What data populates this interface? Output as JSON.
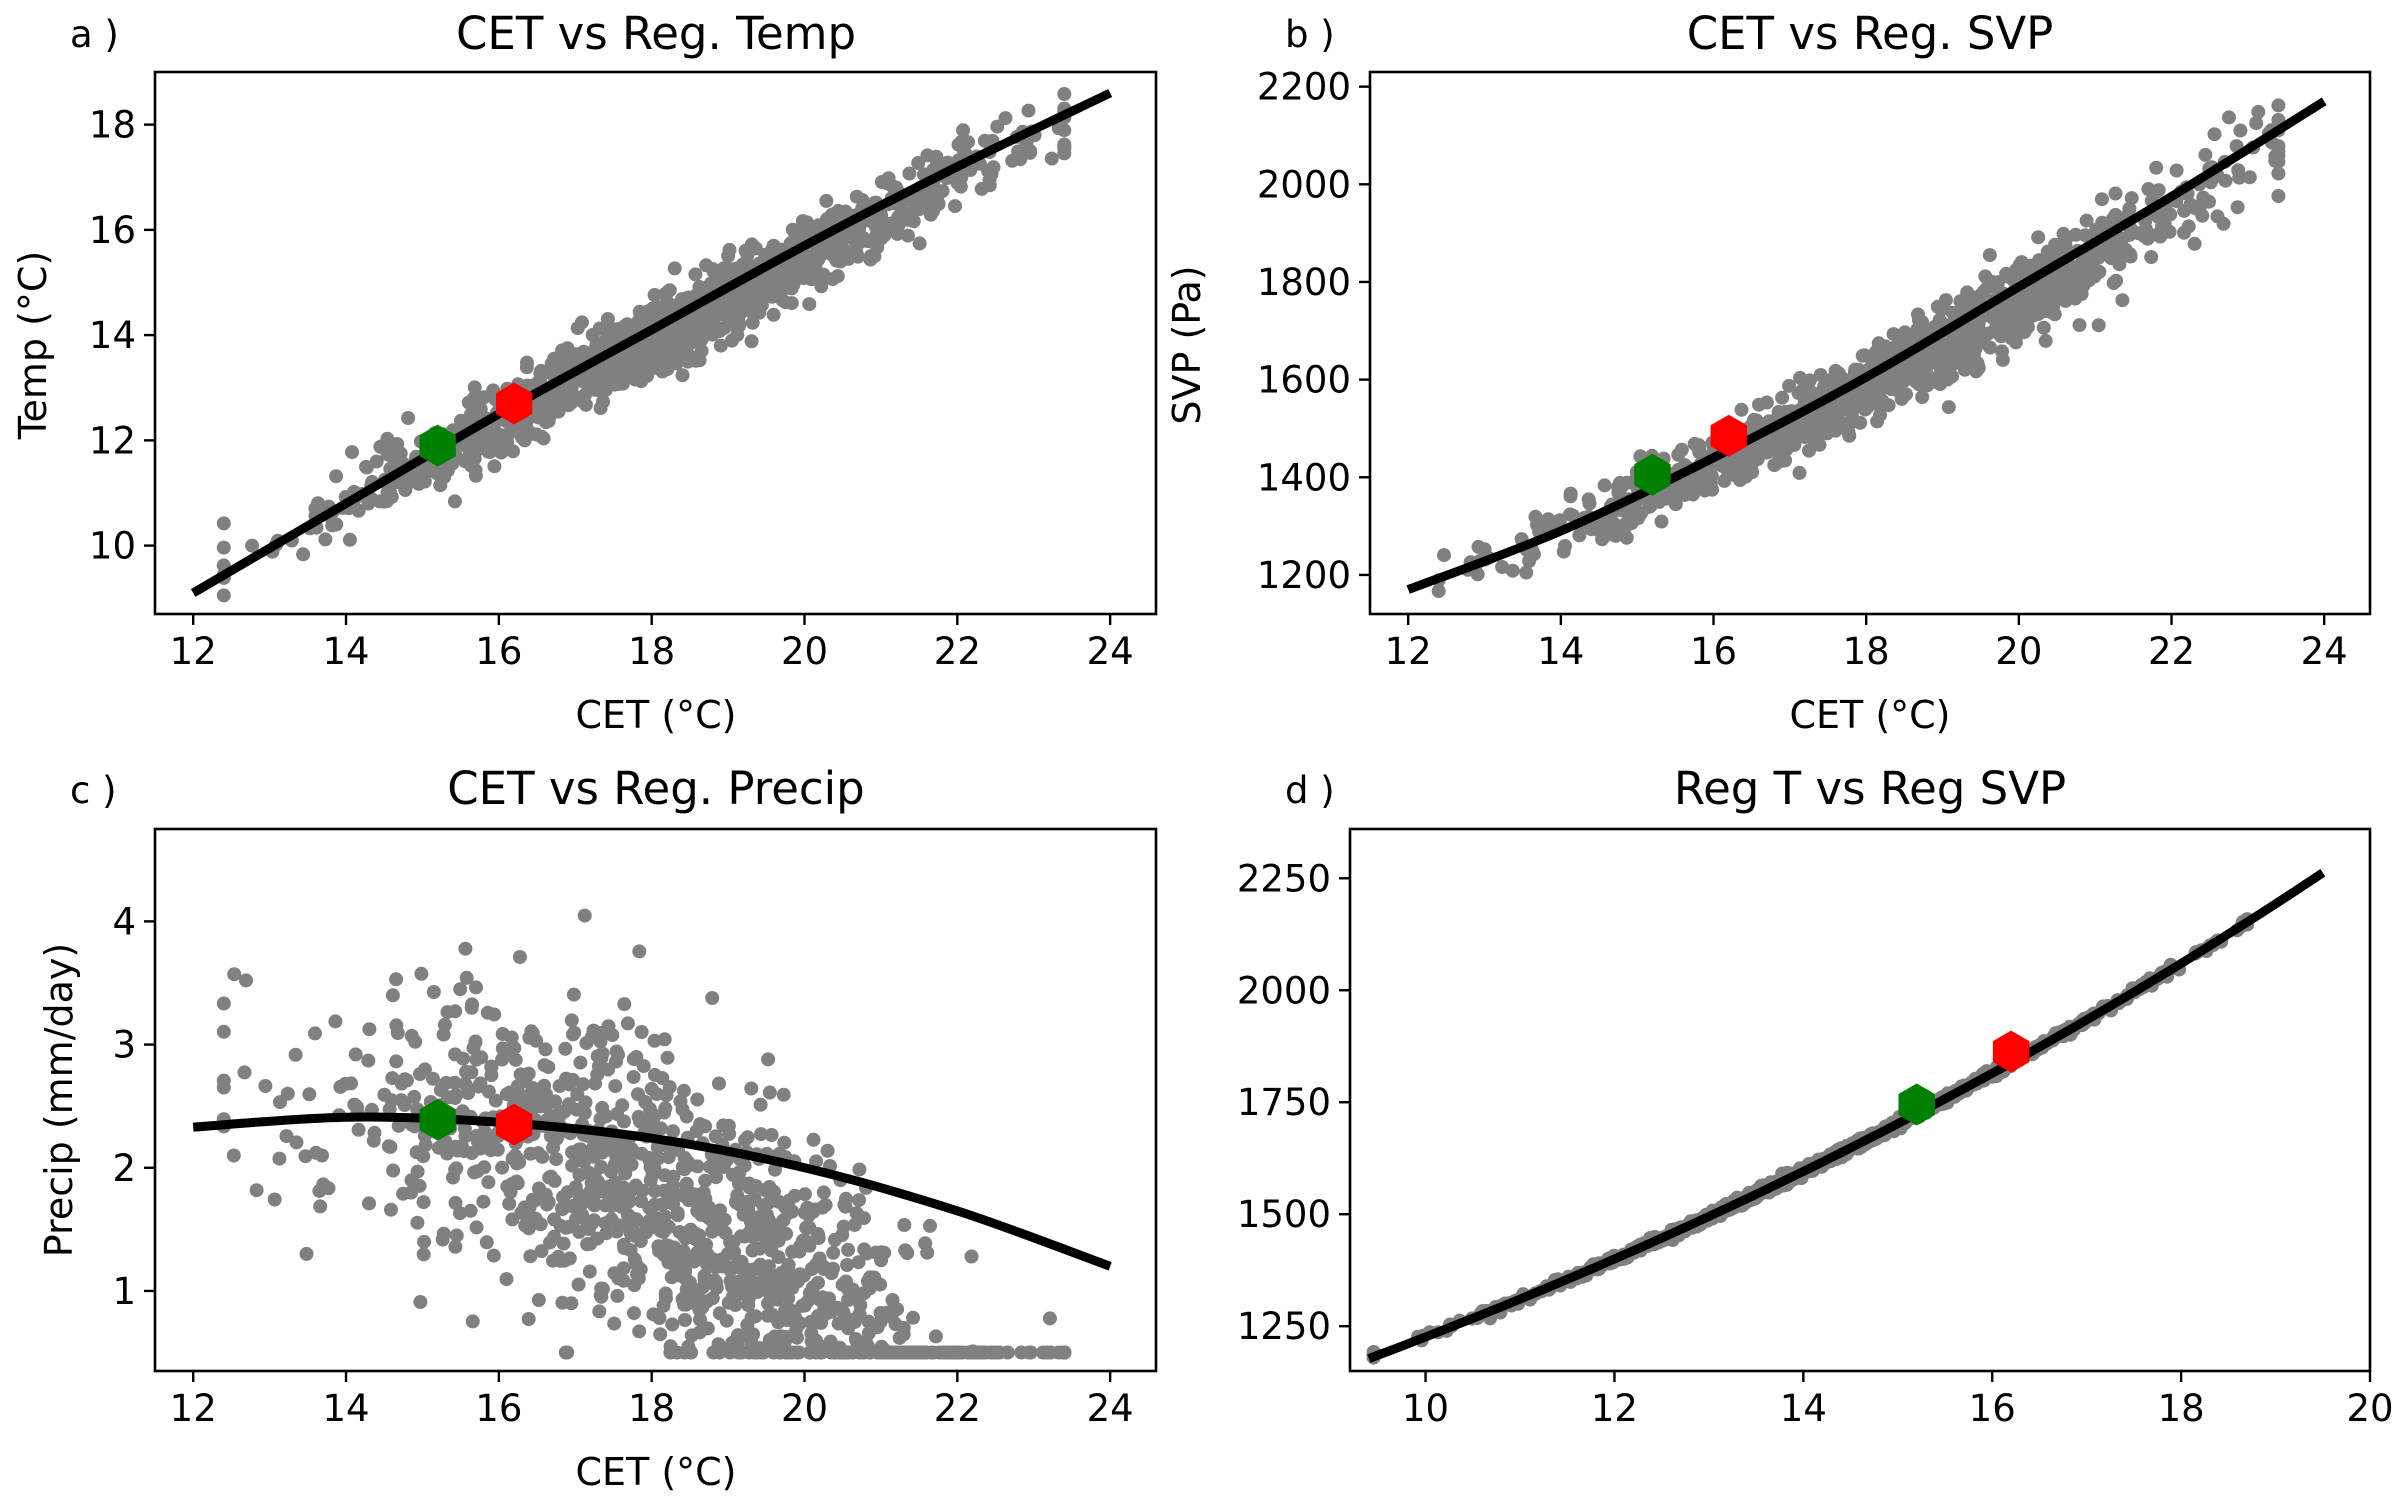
{
  "colors": {
    "points": "#808080",
    "fit_line": "#000000",
    "marker_green": "#008000",
    "marker_red": "#ff0000"
  },
  "chart_data": [
    {
      "type": "scatter",
      "panel_letter": "a )",
      "title": "CET vs Reg. Temp",
      "xlabel": "CET ( $^\\circ$C)",
      "xlabel_display": "CET (°C)",
      "ylabel": "Temp ($^\\circ$C)",
      "ylabel_display": "Temp (°C)",
      "xlim": [
        11.5,
        24.6
      ],
      "ylim": [
        8.7,
        19.0
      ],
      "xticks": [
        12,
        14,
        16,
        18,
        20,
        22,
        24
      ],
      "yticks": [
        10,
        12,
        14,
        16,
        18
      ],
      "grid": false,
      "scatter": {
        "n": 1200,
        "x_mean": 18.3,
        "x_sd": 2.2,
        "x_range": [
          12.4,
          23.4
        ],
        "model": "linear",
        "slope": 0.79,
        "intercept": -0.3,
        "noise_sd": 0.35
      },
      "fit": {
        "x": [
          12,
          14,
          16,
          18,
          20,
          22,
          24
        ],
        "y": [
          9.1,
          10.8,
          12.5,
          14.1,
          15.7,
          17.2,
          18.6
        ]
      },
      "markers": [
        {
          "name": "green",
          "x": 15.2,
          "y": 11.9
        },
        {
          "name": "red",
          "x": 16.2,
          "y": 12.7
        }
      ]
    },
    {
      "type": "scatter",
      "panel_letter": "b )",
      "title": "CET vs Reg. SVP",
      "xlabel": "CET ( $^\\circ$C)",
      "xlabel_display": "CET (°C)",
      "ylabel": "SVP (Pa)",
      "ylabel_display": "SVP (Pa)",
      "xlim": [
        11.5,
        24.6
      ],
      "ylim": [
        1120,
        2230
      ],
      "xticks": [
        12,
        14,
        16,
        18,
        20,
        22,
        24
      ],
      "yticks": [
        1200,
        1400,
        1600,
        1800,
        2000,
        2200
      ],
      "grid": false,
      "scatter": {
        "n": 1200,
        "x_mean": 18.3,
        "x_sd": 2.2,
        "x_range": [
          12.4,
          23.4
        ],
        "model": "svp_of_temp",
        "slope": 0.79,
        "intercept": -0.3,
        "noise_sd": 0.35
      },
      "fit": {
        "x": [
          12,
          14,
          16,
          18,
          20,
          22,
          24
        ],
        "y": [
          1170,
          1290,
          1440,
          1605,
          1790,
          1975,
          2170
        ]
      },
      "markers": [
        {
          "name": "green",
          "x": 15.2,
          "y": 1405
        },
        {
          "name": "red",
          "x": 16.2,
          "y": 1485
        }
      ]
    },
    {
      "type": "scatter",
      "panel_letter": "c )",
      "title": "CET vs Reg. Precip",
      "xlabel": "CET ( $^\\circ$C)",
      "xlabel_display": "CET (°C)",
      "ylabel": "Precip (mm/day)",
      "ylabel_display": "Precip (mm/day)",
      "xlim": [
        11.5,
        24.6
      ],
      "ylim": [
        0.35,
        4.75
      ],
      "xticks": [
        12,
        14,
        16,
        18,
        20,
        22,
        24
      ],
      "yticks": [
        1,
        2,
        3,
        4
      ],
      "grid": false,
      "scatter": {
        "n": 1200,
        "x_mean": 18.3,
        "x_sd": 2.2,
        "x_range": [
          12.4,
          23.4
        ],
        "model": "precip",
        "noise_sd": 0.58,
        "y_range": [
          0.5,
          4.55
        ]
      },
      "fit": {
        "x": [
          12,
          14,
          16,
          18,
          20,
          22,
          24
        ],
        "y": [
          2.33,
          2.41,
          2.37,
          2.24,
          2.0,
          1.65,
          1.2
        ]
      },
      "markers": [
        {
          "name": "green",
          "x": 15.2,
          "y": 2.39
        },
        {
          "name": "red",
          "x": 16.2,
          "y": 2.35
        }
      ]
    },
    {
      "type": "scatter",
      "panel_letter": "d )",
      "title": "Reg T vs Reg SVP",
      "xlabel": "",
      "ylabel": "",
      "xlim": [
        9.2,
        20.0
      ],
      "ylim": [
        1150,
        2360
      ],
      "xticks": [
        10,
        12,
        14,
        16,
        18,
        20
      ],
      "yticks": [
        1250,
        1500,
        1750,
        2000,
        2250
      ],
      "grid": false,
      "scatter": {
        "n": 1200,
        "x_mean": 14.2,
        "x_sd": 1.8,
        "x_range": [
          9.45,
          18.7
        ],
        "model": "svp_curve",
        "noise_sd": 5
      },
      "fit": {
        "x": [
          9.4,
          10,
          12,
          14,
          16,
          18,
          19.5
        ],
        "y": [
          1200,
          1237,
          1404,
          1598,
          1815,
          2061,
          2296
        ]
      },
      "markers": [
        {
          "name": "green",
          "x": 15.2,
          "y": 1745
        },
        {
          "name": "red",
          "x": 16.2,
          "y": 1863
        }
      ]
    }
  ]
}
